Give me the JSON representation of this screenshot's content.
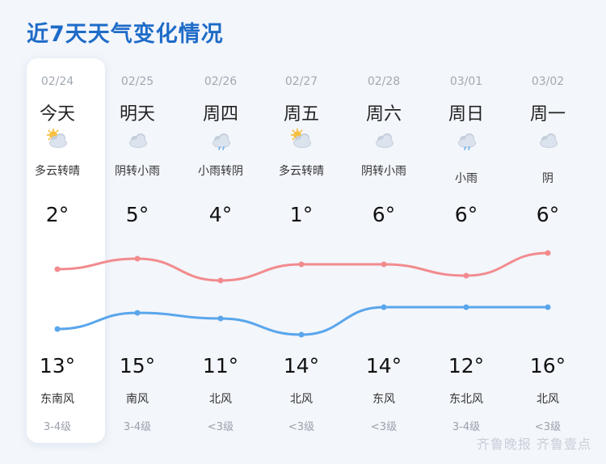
{
  "page": {
    "title": "近7天天气变化情况"
  },
  "days": [
    {
      "date": "02/24",
      "day": "今天",
      "icon": "partly-cloudy-sun-icon",
      "condition": "多云转晴",
      "high": "2°",
      "low": "13°",
      "wind_dir": "东南风",
      "wind_level": "3-4级"
    },
    {
      "date": "02/25",
      "day": "明天",
      "icon": "cloud-icon",
      "condition": "阴转小雨",
      "high": "5°",
      "low": "15°",
      "wind_dir": "南风",
      "wind_level": "3-4级"
    },
    {
      "date": "02/26",
      "day": "周四",
      "icon": "rain-cloud-icon",
      "condition": "小雨转阴",
      "high": "4°",
      "low": "11°",
      "wind_dir": "北风",
      "wind_level": "<3级"
    },
    {
      "date": "02/27",
      "day": "周五",
      "icon": "partly-cloudy-sun-icon",
      "condition": "多云转晴",
      "high": "1°",
      "low": "14°",
      "wind_dir": "北风",
      "wind_level": "<3级"
    },
    {
      "date": "02/28",
      "day": "周六",
      "icon": "cloud-icon",
      "condition": "阴转小雨",
      "high": "6°",
      "low": "14°",
      "wind_dir": "东风",
      "wind_level": "<3级"
    },
    {
      "date": "03/01",
      "day": "周日",
      "icon": "rain-cloud-icon",
      "condition": "小雨",
      "high": "6°",
      "low": "12°",
      "wind_dir": "东北风",
      "wind_level": "3-4级"
    },
    {
      "date": "03/02",
      "day": "周一",
      "icon": "cloud-icon",
      "condition": "阴",
      "high": "6°",
      "low": "16°",
      "wind_dir": "北风",
      "wind_level": "<3级"
    }
  ],
  "curves": {
    "upper_color": "#f28b8e",
    "lower_color": "#5aa6ec"
  },
  "watermark": "齐鲁晚报 齐鲁壹点"
}
